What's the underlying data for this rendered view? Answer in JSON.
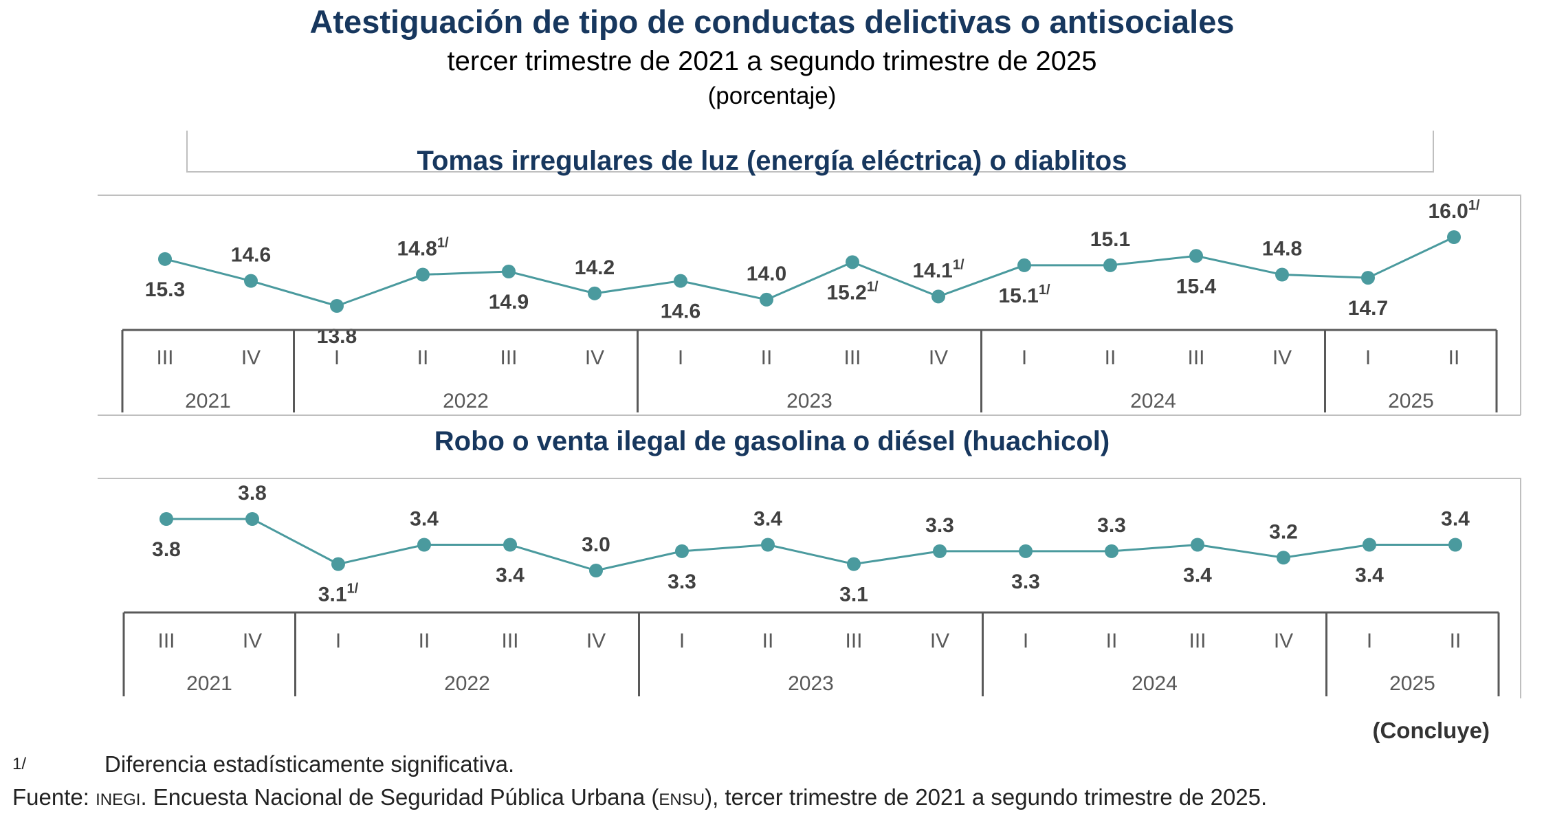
{
  "title": "Atestiguación de tipo de conductas delictivas o antisociales",
  "subtitle": "tercer trimestre de 2021 a segundo trimestre de 2025",
  "unit": "(porcentaje)",
  "colors": {
    "title": "#17375e",
    "line": "#4a9a9e",
    "marker": "#4a9a9e",
    "label": "#404040",
    "axis": "#595959"
  },
  "chart_data": [
    {
      "type": "line",
      "title": "Tomas irregulares  de luz (energía eléctrica)  o diablitos",
      "categories": [
        "III",
        "IV",
        "I",
        "II",
        "III",
        "IV",
        "I",
        "II",
        "III",
        "IV",
        "I",
        "II",
        "III",
        "IV",
        "I",
        "II"
      ],
      "years": [
        {
          "label": "2021",
          "span": 2
        },
        {
          "label": "2022",
          "span": 4
        },
        {
          "label": "2023",
          "span": 4
        },
        {
          "label": "2024",
          "span": 4
        },
        {
          "label": "2025",
          "span": 2
        }
      ],
      "values": [
        15.3,
        14.6,
        13.8,
        14.8,
        14.9,
        14.2,
        14.6,
        14.0,
        15.2,
        14.1,
        15.1,
        15.1,
        15.4,
        14.8,
        14.7,
        16.0
      ],
      "value_labels": [
        "15.3",
        "14.6",
        "13.8",
        "14.8",
        "14.9",
        "14.2",
        "14.6",
        "14.0",
        "15.2",
        "14.1",
        "15.1",
        "15.1",
        "15.4",
        "14.8",
        "14.7",
        "16.0"
      ],
      "label_above": [
        false,
        true,
        false,
        true,
        false,
        true,
        false,
        true,
        false,
        true,
        false,
        true,
        false,
        true,
        false,
        true
      ],
      "significant": [
        false,
        false,
        false,
        true,
        false,
        false,
        false,
        false,
        true,
        true,
        true,
        false,
        false,
        false,
        false,
        true
      ]
    },
    {
      "type": "line",
      "title": "Robo o venta ilegal  de gasolina  o diésel  (huachicol)",
      "categories": [
        "III",
        "IV",
        "I",
        "II",
        "III",
        "IV",
        "I",
        "II",
        "III",
        "IV",
        "I",
        "II",
        "III",
        "IV",
        "I",
        "II"
      ],
      "years": [
        {
          "label": "2021",
          "span": 2
        },
        {
          "label": "2022",
          "span": 4
        },
        {
          "label": "2023",
          "span": 4
        },
        {
          "label": "2024",
          "span": 4
        },
        {
          "label": "2025",
          "span": 2
        }
      ],
      "values": [
        3.8,
        3.8,
        3.1,
        3.4,
        3.4,
        3.0,
        3.3,
        3.4,
        3.1,
        3.3,
        3.3,
        3.3,
        3.4,
        3.2,
        3.4,
        3.4
      ],
      "value_labels": [
        "3.8",
        "3.8",
        "3.1",
        "3.4",
        "3.4",
        "3.0",
        "3.3",
        "3.4",
        "3.1",
        "3.3",
        "3.3",
        "3.3",
        "3.4",
        "3.2",
        "3.4",
        "3.4"
      ],
      "label_above": [
        false,
        true,
        false,
        true,
        false,
        true,
        false,
        true,
        false,
        true,
        false,
        true,
        false,
        true,
        false,
        true
      ],
      "significant": [
        false,
        false,
        true,
        false,
        false,
        false,
        false,
        false,
        false,
        false,
        false,
        false,
        false,
        false,
        false,
        false
      ]
    }
  ],
  "significance_mark": "1/",
  "concluye": "(Concluye)",
  "footnotes": {
    "mark": "1/",
    "significance_text": "Diferencia estadísticamente significativa.",
    "source_label": "Fuente:",
    "source_org": "INEGI",
    "source_text_1": ". Encuesta Nacional de Seguridad Pública Urbana (",
    "source_abbr": "ENSU",
    "source_text_2": "), tercer trimestre de 2021 a segundo trimestre de 2025."
  }
}
